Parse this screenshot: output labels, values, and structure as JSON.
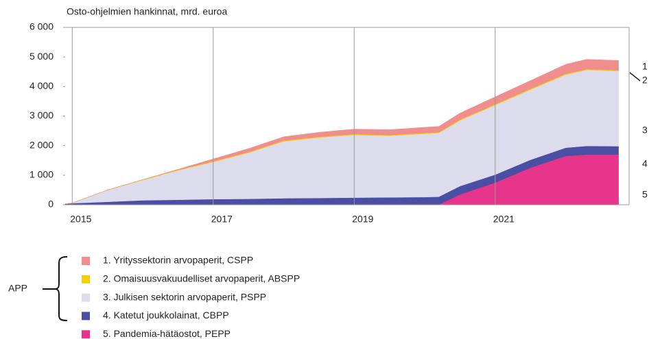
{
  "chart_data": {
    "type": "stacked_area",
    "y_axis_title": "Osto-ohjelmien hankinnat, mrd. euroa",
    "x": [
      2014.9,
      2015.0,
      2015.5,
      2016.0,
      2016.5,
      2017.0,
      2017.5,
      2018.0,
      2018.5,
      2019.0,
      2019.5,
      2020.0,
      2020.2,
      2020.5,
      2021.0,
      2021.5,
      2022.0,
      2022.3,
      2022.75
    ],
    "xlim": [
      2014.9,
      2022.9
    ],
    "xticks": [
      2015,
      2017,
      2019,
      2021
    ],
    "ylim": [
      0,
      6000
    ],
    "yticks": [
      0,
      {
        "value": 1000,
        "label": "1 000"
      },
      {
        "value": 2000,
        "label": "2 000"
      },
      {
        "value": 3000,
        "label": "3 000"
      },
      {
        "value": 4000,
        "label": "4 000"
      },
      {
        "value": 5000,
        "label": "5 000"
      },
      {
        "value": 6000,
        "label": "6 000"
      }
    ],
    "grid": "x",
    "legend_group_label": "APP",
    "series": [
      {
        "name": "1.  Yrityssektorin arvopaperit, CSPP",
        "end_label": "1",
        "color": "#f08e8e",
        "values": [
          0,
          0,
          0,
          0,
          20,
          80,
          120,
          130,
          150,
          170,
          180,
          190,
          195,
          220,
          250,
          280,
          320,
          330,
          330
        ]
      },
      {
        "name": "2. Omaisuusvakuudelliset arvopaperit, ABSPP",
        "end_label": "2",
        "color": "#f5d000",
        "values": [
          0,
          5,
          10,
          15,
          20,
          25,
          25,
          28,
          28,
          30,
          30,
          30,
          30,
          30,
          30,
          30,
          30,
          30,
          30
        ]
      },
      {
        "name": "3. Julkisen sektorin arvopaperit, PSPP",
        "end_label": "3",
        "color": "#dcdced",
        "values": [
          0,
          5,
          390,
          685,
          990,
          1255,
          1555,
          1922,
          2042,
          2120,
          2080,
          2140,
          2155,
          2220,
          2350,
          2370,
          2470,
          2570,
          2540
        ]
      },
      {
        "name": "4. Katetut joukkolainat, CBPP",
        "end_label": "4",
        "color": "#4a4fa3",
        "values": [
          30,
          50,
          100,
          150,
          170,
          190,
          200,
          220,
          230,
          240,
          250,
          260,
          270,
          280,
          270,
          270,
          280,
          290,
          280
        ]
      },
      {
        "name": "5. Pandemia-hätäostot, PEPP",
        "end_label": "5",
        "color": "#e6358b",
        "values": [
          0,
          0,
          0,
          0,
          0,
          0,
          0,
          0,
          0,
          0,
          0,
          0,
          0,
          350,
          750,
          1250,
          1650,
          1700,
          1700
        ]
      }
    ]
  }
}
